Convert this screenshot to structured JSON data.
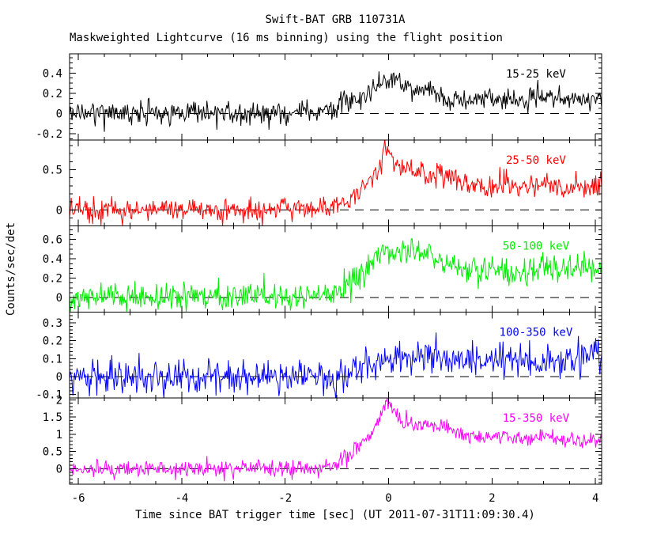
{
  "title": "Swift-BAT GRB 110731A",
  "subtitle": "Maskweighted Lightcurve (16 ms binning) using the flight position",
  "chart_data": {
    "type": "line",
    "title": "Swift-BAT GRB 110731A",
    "subtitle": "Maskweighted Lightcurve (16 ms binning) using the flight position",
    "xlabel": "Time since BAT trigger time [sec] (UT 2011-07-31T11:09:30.4)",
    "ylabel": "Counts/sec/det",
    "xlim": [
      -6.17,
      4.12
    ],
    "xticks": [
      -6,
      -4,
      -2,
      0,
      2,
      4
    ],
    "x_minor_step": 0.5,
    "bin_seconds": 0.016,
    "grid": false,
    "zero_line_style": "dashed-black",
    "background": "#ffffff",
    "axis_color": "#000000",
    "panels": [
      {
        "label": "15-25 keV",
        "color": "#000000",
        "ylim": [
          -0.26,
          0.59
        ],
        "yticks": [
          -0.2,
          0,
          0.2,
          0.4
        ],
        "y_minor_step": 0.05,
        "noise_sigma": 0.055,
        "profile": [
          [
            -6.2,
            0
          ],
          [
            -1.5,
            0.01
          ],
          [
            -1.1,
            0.05
          ],
          [
            -0.8,
            0.1
          ],
          [
            -0.5,
            0.16
          ],
          [
            -0.25,
            0.25
          ],
          [
            -0.05,
            0.33
          ],
          [
            0.1,
            0.35
          ],
          [
            0.25,
            0.28
          ],
          [
            0.5,
            0.2
          ],
          [
            0.8,
            0.24
          ],
          [
            1.05,
            0.15
          ],
          [
            1.4,
            0.12
          ],
          [
            1.8,
            0.16
          ],
          [
            2.1,
            0.18
          ],
          [
            2.5,
            0.13
          ],
          [
            2.9,
            0.16
          ],
          [
            3.3,
            0.16
          ],
          [
            3.7,
            0.14
          ],
          [
            4.12,
            0.12
          ]
        ]
      },
      {
        "label": "25-50 keV",
        "color": "#ff0000",
        "ylim": [
          -0.2,
          0.87
        ],
        "yticks": [
          0,
          0.5
        ],
        "y_minor_step": 0.1,
        "noise_sigma": 0.07,
        "profile": [
          [
            -6.2,
            0
          ],
          [
            -1.4,
            0.01
          ],
          [
            -1.05,
            0.07
          ],
          [
            -0.8,
            0.1
          ],
          [
            -0.6,
            0.22
          ],
          [
            -0.4,
            0.35
          ],
          [
            -0.2,
            0.5
          ],
          [
            -0.07,
            0.75
          ],
          [
            0.05,
            0.65
          ],
          [
            0.25,
            0.52
          ],
          [
            0.5,
            0.48
          ],
          [
            0.7,
            0.42
          ],
          [
            0.95,
            0.47
          ],
          [
            1.15,
            0.42
          ],
          [
            1.45,
            0.32
          ],
          [
            1.8,
            0.28
          ],
          [
            2.2,
            0.32
          ],
          [
            2.6,
            0.3
          ],
          [
            3.0,
            0.32
          ],
          [
            3.4,
            0.28
          ],
          [
            3.8,
            0.3
          ],
          [
            4.12,
            0.28
          ]
        ]
      },
      {
        "label": "50-100 keV",
        "color": "#00ee00",
        "ylim": [
          -0.15,
          0.74
        ],
        "yticks": [
          0,
          0.2,
          0.4,
          0.6
        ],
        "y_minor_step": 0.05,
        "noise_sigma": 0.07,
        "profile": [
          [
            -6.2,
            0
          ],
          [
            -1.5,
            0.01
          ],
          [
            -1.15,
            0.06
          ],
          [
            -0.85,
            0.12
          ],
          [
            -0.55,
            0.22
          ],
          [
            -0.3,
            0.38
          ],
          [
            -0.1,
            0.5
          ],
          [
            0.1,
            0.46
          ],
          [
            0.35,
            0.5
          ],
          [
            0.6,
            0.45
          ],
          [
            0.85,
            0.42
          ],
          [
            1.1,
            0.35
          ],
          [
            1.35,
            0.3
          ],
          [
            1.7,
            0.26
          ],
          [
            2.1,
            0.3
          ],
          [
            2.5,
            0.24
          ],
          [
            2.9,
            0.32
          ],
          [
            3.3,
            0.3
          ],
          [
            3.7,
            0.32
          ],
          [
            4.12,
            0.3
          ]
        ]
      },
      {
        "label": "100-350 keV",
        "color": "#0000ff",
        "ylim": [
          -0.12,
          0.36
        ],
        "yticks": [
          -0.1,
          0,
          0.1,
          0.2,
          0.3
        ],
        "y_minor_step": 0.02,
        "noise_sigma": 0.045,
        "profile": [
          [
            -6.2,
            0
          ],
          [
            -1.0,
            0.0
          ],
          [
            -0.7,
            0.03
          ],
          [
            -0.4,
            0.07
          ],
          [
            -0.1,
            0.1
          ],
          [
            0.3,
            0.11
          ],
          [
            0.7,
            0.12
          ],
          [
            1.1,
            0.1
          ],
          [
            1.5,
            0.1
          ],
          [
            2.0,
            0.09
          ],
          [
            2.5,
            0.1
          ],
          [
            3.0,
            0.08
          ],
          [
            3.5,
            0.09
          ],
          [
            3.9,
            0.13
          ],
          [
            4.12,
            0.1
          ]
        ]
      },
      {
        "label": "15-350 keV",
        "color": "#ff00ff",
        "ylim": [
          -0.45,
          2.05
        ],
        "yticks": [
          0,
          0.5,
          1,
          1.5,
          2
        ],
        "y_minor_step": 0.1,
        "noise_sigma": 0.12,
        "profile": [
          [
            -6.2,
            0
          ],
          [
            -1.4,
            0.02
          ],
          [
            -1.1,
            0.1
          ],
          [
            -0.85,
            0.3
          ],
          [
            -0.6,
            0.6
          ],
          [
            -0.35,
            1.0
          ],
          [
            -0.15,
            1.6
          ],
          [
            -0.02,
            1.95
          ],
          [
            0.1,
            1.7
          ],
          [
            0.3,
            1.35
          ],
          [
            0.55,
            1.2
          ],
          [
            0.8,
            1.3
          ],
          [
            1.0,
            1.3
          ],
          [
            1.2,
            1.15
          ],
          [
            1.5,
            0.95
          ],
          [
            1.8,
            0.85
          ],
          [
            2.1,
            1.0
          ],
          [
            2.35,
            0.95
          ],
          [
            2.7,
            0.85
          ],
          [
            3.0,
            0.95
          ],
          [
            3.3,
            0.9
          ],
          [
            3.6,
            0.8
          ],
          [
            3.9,
            0.85
          ],
          [
            4.12,
            0.8
          ]
        ]
      }
    ]
  }
}
